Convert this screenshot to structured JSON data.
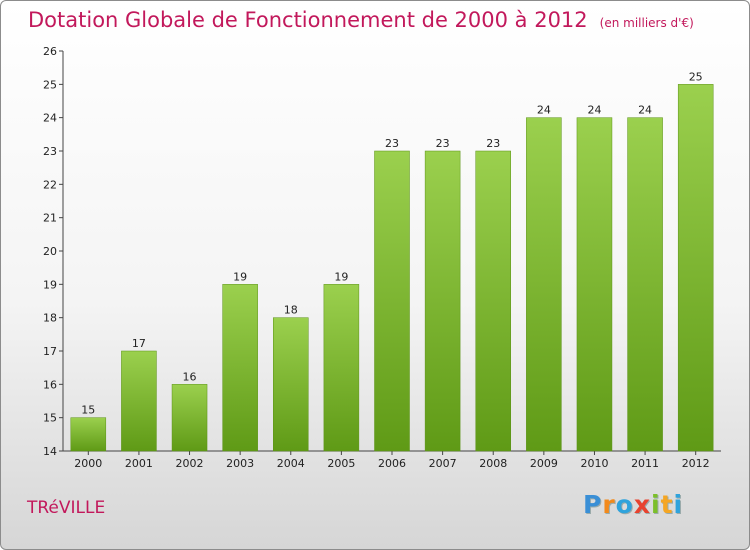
{
  "chart_data": {
    "type": "bar",
    "title": "Dotation Globale de Fonctionnement de 2000 à 2012",
    "subtitle": "(en milliers d'€)",
    "categories": [
      "2000",
      "2001",
      "2002",
      "2003",
      "2004",
      "2005",
      "2006",
      "2007",
      "2008",
      "2009",
      "2010",
      "2011",
      "2012"
    ],
    "values": [
      15,
      17,
      16,
      19,
      18,
      19,
      23,
      23,
      23,
      24,
      24,
      24,
      25
    ],
    "ylim": [
      14,
      26
    ],
    "yticks": [
      14,
      15,
      16,
      17,
      18,
      19,
      20,
      21,
      22,
      23,
      24,
      25,
      26
    ],
    "grid": false,
    "bar_color": "#7cb82f"
  },
  "commune": "TRéVILLE",
  "logo": {
    "letters": [
      "P",
      "r",
      "o",
      "x",
      "i",
      "t",
      "i"
    ],
    "colors": [
      "#3a8fd6",
      "#f28a1c",
      "#2fa3dc",
      "#e8432f",
      "#7cbf2a",
      "#f5a623",
      "#2fa3dc"
    ]
  }
}
